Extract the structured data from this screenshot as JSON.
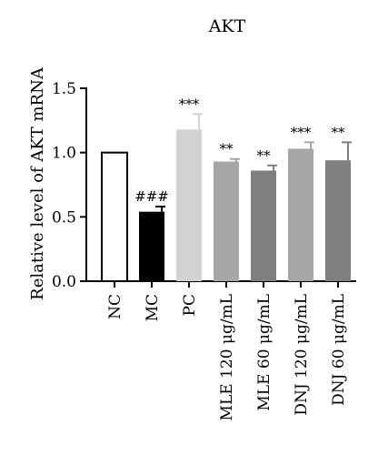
{
  "chart_data": {
    "type": "bar",
    "title": "AKT",
    "xlabel": "",
    "ylabel": "Relative level of AKT mRNA",
    "ylim": [
      0,
      1.5
    ],
    "yticks": [
      "0.0",
      "0.5",
      "1.0",
      "1.5"
    ],
    "grid": false,
    "categories": [
      "NC",
      "MC",
      "PC",
      "MLE 120 μg/mL",
      "MLE 60 μg/mL",
      "DNJ 120 μg/mL",
      "DNJ 60 μg/mL"
    ],
    "values": [
      1.0,
      0.54,
      1.18,
      0.93,
      0.86,
      1.03,
      0.94
    ],
    "errors": [
      0.0,
      0.04,
      0.12,
      0.02,
      0.04,
      0.05,
      0.14
    ],
    "annotations": [
      "",
      "###",
      "***",
      "**",
      "**",
      "***",
      "**"
    ],
    "colors": [
      "#ffffff",
      "#000000",
      "#d3d3d3",
      "#a6a6a6",
      "#7f7f7f",
      "#a6a6a6",
      "#7f7f7f"
    ]
  }
}
